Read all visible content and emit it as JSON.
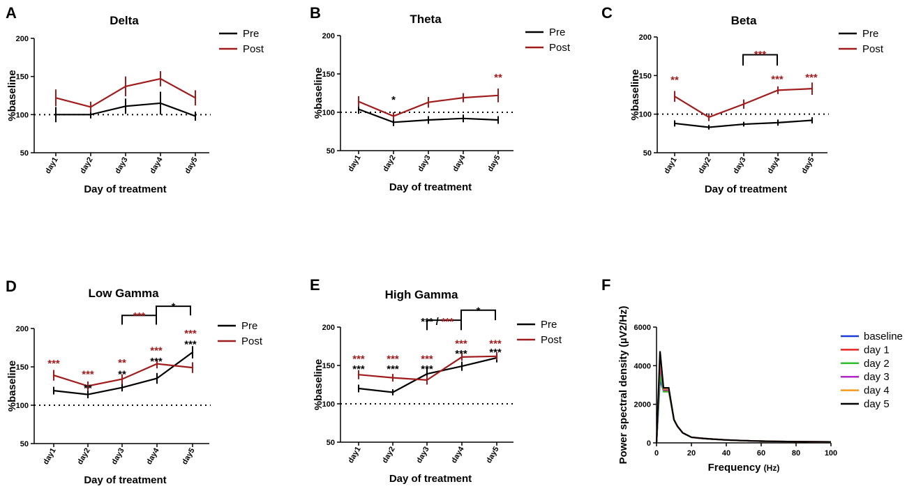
{
  "colors": {
    "pre": "#000000",
    "post": "#a01c1c",
    "axis": "#000000"
  },
  "x_axis_label": "Day of treatment",
  "y_axis_label": "%baseline",
  "legend": {
    "pre": "Pre",
    "post": "Post"
  },
  "chart_data": [
    {
      "panel": "A",
      "type": "line",
      "title": "Delta",
      "categories": [
        "day1",
        "day2",
        "day3",
        "day4",
        "day5"
      ],
      "ylim": [
        50,
        200
      ],
      "yticks": [
        "50",
        "100",
        "150",
        "200"
      ],
      "xlabel": "Day of treatment",
      "ylabel": "%baseline",
      "reference_line": 100,
      "series": [
        {
          "name": "Pre",
          "values": [
            100,
            100,
            111,
            115,
            98
          ],
          "errors": [
            10,
            5,
            10,
            15,
            6
          ]
        },
        {
          "name": "Post",
          "values": [
            122,
            110,
            137,
            147,
            122
          ],
          "errors": [
            11,
            7,
            13,
            10,
            10
          ]
        }
      ],
      "annotations": []
    },
    {
      "panel": "B",
      "type": "line",
      "title": "Theta",
      "categories": [
        "day1",
        "day2",
        "day3",
        "day4",
        "day5"
      ],
      "ylim": [
        50,
        200
      ],
      "yticks": [
        "50",
        "100",
        "150",
        "200"
      ],
      "xlabel": "Day of treatment",
      "ylabel": "%baseline",
      "reference_line": 100,
      "series": [
        {
          "name": "Pre",
          "values": [
            104,
            87,
            90,
            92,
            90
          ],
          "errors": [
            6,
            5,
            5,
            5,
            5
          ]
        },
        {
          "name": "Post",
          "values": [
            114,
            95,
            113,
            119,
            122
          ],
          "errors": [
            7,
            5,
            7,
            6,
            9
          ]
        }
      ],
      "annotations": [
        {
          "text": "*",
          "color": "pre",
          "day": 2,
          "y": 121
        },
        {
          "text": "**",
          "color": "post",
          "day": 5,
          "y": 150
        }
      ]
    },
    {
      "panel": "C",
      "type": "line",
      "title": "Beta",
      "categories": [
        "day1",
        "day2",
        "day3",
        "day4",
        "day5"
      ],
      "ylim": [
        50,
        200
      ],
      "yticks": [
        "50",
        "100",
        "150",
        "200"
      ],
      "xlabel": "Day of treatment",
      "ylabel": "%baseline",
      "reference_line": 100,
      "series": [
        {
          "name": "Pre",
          "values": [
            88,
            83,
            87,
            89,
            92
          ],
          "errors": [
            4,
            3,
            3,
            4,
            4
          ]
        },
        {
          "name": "Post",
          "values": [
            123,
            96,
            113,
            131,
            133
          ],
          "errors": [
            7,
            5,
            6,
            5,
            8
          ]
        }
      ],
      "annotations": [
        {
          "text": "**",
          "color": "post",
          "day": 1,
          "y": 149
        },
        {
          "text": "***",
          "color": "post",
          "day": 4,
          "y": 150
        },
        {
          "text": "***",
          "color": "post",
          "day": 5,
          "y": 152
        },
        {
          "text": "***",
          "color": "post",
          "day": 3.5,
          "y": 182
        }
      ],
      "brackets": [
        {
          "from": 3,
          "to": 4,
          "y": 177,
          "drop": 163
        }
      ]
    },
    {
      "panel": "D",
      "type": "line",
      "title": "Low Gamma",
      "categories": [
        "day1",
        "day2",
        "day3",
        "day4",
        "day5"
      ],
      "ylim": [
        50,
        200
      ],
      "yticks": [
        "50",
        "100",
        "150",
        "200"
      ],
      "xlabel": "Day of treatment",
      "ylabel": "%baseline",
      "reference_line": 100,
      "series": [
        {
          "name": "Pre",
          "values": [
            119,
            114,
            123,
            135,
            169
          ],
          "errors": [
            5,
            5,
            5,
            7,
            8
          ]
        },
        {
          "name": "Post",
          "values": [
            139,
            125,
            134,
            154,
            149
          ],
          "errors": [
            7,
            6,
            6,
            6,
            7
          ]
        }
      ],
      "annotations": [
        {
          "text": "***",
          "color": "post",
          "day": 1,
          "y": 159
        },
        {
          "text": "***",
          "color": "post",
          "day": 2,
          "y": 145
        },
        {
          "text": "**",
          "color": "pre",
          "day": 2,
          "y": 127
        },
        {
          "text": "**",
          "color": "post",
          "day": 3,
          "y": 160
        },
        {
          "text": "**",
          "color": "pre",
          "day": 3,
          "y": 145
        },
        {
          "text": "***",
          "color": "post",
          "day": 4,
          "y": 176
        },
        {
          "text": "***",
          "color": "pre",
          "day": 4,
          "y": 162
        },
        {
          "text": "***",
          "color": "post",
          "day": 5,
          "y": 198
        },
        {
          "text": "***",
          "color": "pre",
          "day": 5,
          "y": 184
        },
        {
          "text": "***",
          "color": "post",
          "day": 3.5,
          "y": 221
        },
        {
          "text": "*",
          "color": "pre",
          "day": 4.5,
          "y": 233
        }
      ],
      "brackets": [
        {
          "from": 3,
          "to": 4,
          "y": 217,
          "drop": 205
        },
        {
          "from": 4,
          "to": 5,
          "y": 229,
          "drop": 217
        }
      ]
    },
    {
      "panel": "E",
      "type": "line",
      "title": "High Gamma",
      "categories": [
        "day1",
        "day2",
        "day3",
        "day4",
        "day5"
      ],
      "ylim": [
        50,
        200
      ],
      "yticks": [
        "50",
        "100",
        "150",
        "200"
      ],
      "xlabel": "Day of treatment",
      "ylabel": "%baseline",
      "reference_line": 100,
      "series": [
        {
          "name": "Pre",
          "values": [
            120,
            115,
            139,
            149,
            160
          ],
          "errors": [
            5,
            4,
            7,
            6,
            6
          ]
        },
        {
          "name": "Post",
          "values": [
            138,
            134,
            131,
            161,
            162
          ],
          "errors": [
            6,
            5,
            6,
            5,
            5
          ]
        }
      ],
      "annotations": [
        {
          "text": "***",
          "color": "post",
          "day": 1,
          "y": 163
        },
        {
          "text": "***",
          "color": "pre",
          "day": 1,
          "y": 150
        },
        {
          "text": "***",
          "color": "post",
          "day": 2,
          "y": 163
        },
        {
          "text": "***",
          "color": "pre",
          "day": 2,
          "y": 150
        },
        {
          "text": "***",
          "color": "post",
          "day": 3,
          "y": 163
        },
        {
          "text": "***",
          "color": "pre",
          "day": 3,
          "y": 150
        },
        {
          "text": "***",
          "color": "post",
          "day": 4,
          "y": 183
        },
        {
          "text": "***",
          "color": "pre",
          "day": 4,
          "y": 170
        },
        {
          "text": "***",
          "color": "post",
          "day": 5,
          "y": 183
        },
        {
          "text": "***",
          "color": "pre",
          "day": 5,
          "y": 172
        },
        {
          "text": "***",
          "color": "pre",
          "day": 3,
          "y": 212
        },
        {
          "text": "/",
          "color": "pre",
          "day": 3.3,
          "y": 212
        },
        {
          "text": "***",
          "color": "post",
          "day": 3.6,
          "y": 212
        },
        {
          "text": "*",
          "color": "pre",
          "day": 4.5,
          "y": 226
        }
      ],
      "brackets": [
        {
          "from": 3,
          "to": 4,
          "y": 209,
          "drop": 196
        },
        {
          "from": 4,
          "to": 5,
          "y": 222,
          "drop": 209
        }
      ]
    },
    {
      "panel": "F",
      "type": "line",
      "title": "",
      "xlabel": "Frequency",
      "xlabel_unit": "(Hz)",
      "ylabel": "Power spectral density (µV2/Hz)",
      "xlim": [
        0,
        100
      ],
      "ylim": [
        0,
        6000
      ],
      "xticks": [
        "0",
        "20",
        "40",
        "60",
        "80",
        "100"
      ],
      "yticks": [
        "0",
        "2000",
        "4000",
        "6000"
      ],
      "legend": [
        "baseline",
        "day 1",
        "day 2",
        "day 3",
        "day 4",
        "day 5"
      ],
      "series": [
        {
          "name": "baseline",
          "color": "#1a3cd6",
          "peak": 3250,
          "peak2": 2700
        },
        {
          "name": "day 1",
          "color": "#e62424",
          "peak": 3700,
          "peak2": 2700
        },
        {
          "name": "day 2",
          "color": "#2cc02c",
          "peak": 3550,
          "peak2": 2650
        },
        {
          "name": "day 3",
          "color": "#b026c8",
          "peak": 4200,
          "peak2": 2750
        },
        {
          "name": "day 4",
          "color": "#f59a1c",
          "peak": 4500,
          "peak2": 2800
        },
        {
          "name": "day 5",
          "color": "#000000",
          "peak": 4750,
          "peak2": 2850
        }
      ],
      "x": [
        0,
        0.5,
        1,
        2,
        3,
        4,
        5,
        6,
        7,
        8,
        10,
        12,
        15,
        20,
        25,
        30,
        40,
        50,
        60,
        70,
        80,
        90,
        100
      ]
    }
  ]
}
